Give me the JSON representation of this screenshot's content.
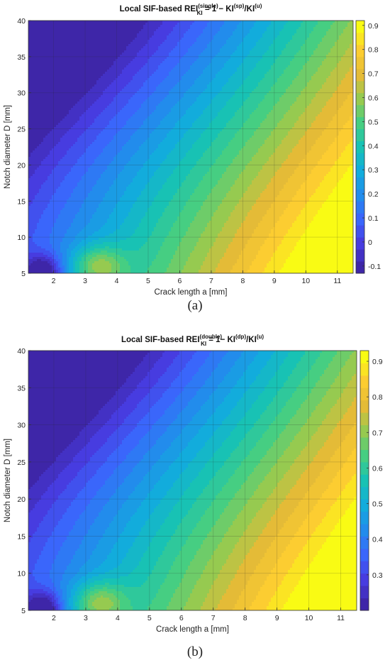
{
  "chart_data": [
    {
      "type": "heatmap",
      "subtype": "filled-contour",
      "caption": "(a)",
      "title": {
        "prefix": "Local SIF-based REI",
        "sup1": "(single)",
        "sub1": "KI",
        "mid": " = 1 −  KI",
        "sup2": "(sp)",
        "mid2": "/KI",
        "sup3": "(u)"
      },
      "xlabel": "Crack length a [mm]",
      "ylabel": "Notch diameter D [mm]",
      "xlim": [
        1.2,
        11.5
      ],
      "ylim": [
        5,
        40
      ],
      "xticks": [
        2,
        3,
        4,
        5,
        6,
        7,
        8,
        9,
        10,
        11
      ],
      "yticks": [
        5,
        10,
        15,
        20,
        25,
        30,
        35,
        40
      ],
      "grid": true,
      "colormap": "parula",
      "clim": [
        -0.13,
        0.92
      ],
      "colorbar_ticks": [
        -0.1,
        0,
        0.1,
        0.2,
        0.3,
        0.4,
        0.5,
        0.6,
        0.7,
        0.8,
        0.9
      ],
      "levels": 21
    },
    {
      "type": "heatmap",
      "subtype": "filled-contour",
      "caption": "(b)",
      "title": {
        "prefix": "Local SIF-based REI",
        "sup1": "(double)",
        "sub1": "KI",
        "mid": " = 1− KI",
        "sup2": "(dp)",
        "mid2": "/KI",
        "sup3": "(u)"
      },
      "xlabel": "Crack length a [mm]",
      "ylabel": "Notch diameter D [mm]",
      "xlim": [
        1.2,
        11.5
      ],
      "ylim": [
        5,
        40
      ],
      "xticks": [
        2,
        3,
        4,
        5,
        6,
        7,
        8,
        9,
        10,
        11
      ],
      "yticks": [
        5,
        10,
        15,
        20,
        25,
        30,
        35,
        40
      ],
      "grid": true,
      "colormap": "parula",
      "clim": [
        0.2,
        0.93
      ],
      "colorbar_ticks": [
        0.3,
        0.4,
        0.5,
        0.6,
        0.7,
        0.8,
        0.9
      ],
      "levels": 21
    }
  ]
}
